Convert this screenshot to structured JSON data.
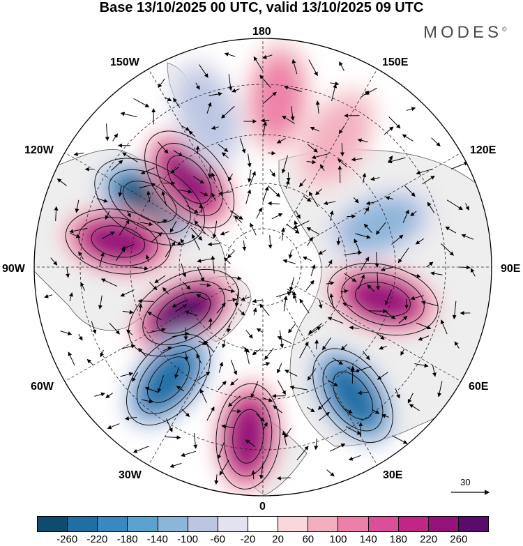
{
  "title": "Base 13/10/2025 00 UTC, valid 13/10/2025 09 UTC",
  "logo": "MODES",
  "logo_mark": "©",
  "longitude_labels": {
    "top": "180",
    "bottom": "0",
    "left": "90W",
    "right": "90E",
    "upper_left": "150W",
    "upper_right": "150E",
    "mid_upper_left": "120W",
    "mid_upper_right": "120E",
    "mid_lower_left": "60W",
    "mid_lower_right": "60E",
    "lower_left": "30W",
    "lower_right": "30E"
  },
  "vector_reference": "30",
  "colorbar": {
    "colors": [
      "#0f4a6f",
      "#1f6fa4",
      "#3889c0",
      "#5aa3cf",
      "#8bb5d9",
      "#bcc6e3",
      "#e3e2f0",
      "#ffffff",
      "#f8d8da",
      "#f3afbf",
      "#ec80a8",
      "#dc4f98",
      "#c32587",
      "#95127a",
      "#5a0b6c"
    ],
    "ticks": [
      "-260",
      "-220",
      "-180",
      "-140",
      "-100",
      "-60",
      "-20",
      "20",
      "60",
      "100",
      "140",
      "180",
      "220",
      "260"
    ]
  },
  "anomaly_centers": [
    {
      "lon": -120,
      "lat": 50,
      "value": -260
    },
    {
      "lon": -140,
      "lat": 55,
      "value": 240
    },
    {
      "lon": -100,
      "lat": 45,
      "value": 220
    },
    {
      "lon": -60,
      "lat": 62,
      "value": 260
    },
    {
      "lon": -40,
      "lat": 45,
      "value": -220
    },
    {
      "lon": -5,
      "lat": 38,
      "value": 220
    },
    {
      "lon": 35,
      "lat": 42,
      "value": -220
    },
    {
      "lon": 75,
      "lat": 52,
      "value": 240
    },
    {
      "lon": 110,
      "lat": 52,
      "value": -120
    },
    {
      "lon": 150,
      "lat": 45,
      "value": 80
    },
    {
      "lon": 175,
      "lat": 38,
      "value": 100
    },
    {
      "lon": -160,
      "lat": 40,
      "value": -80
    }
  ]
}
